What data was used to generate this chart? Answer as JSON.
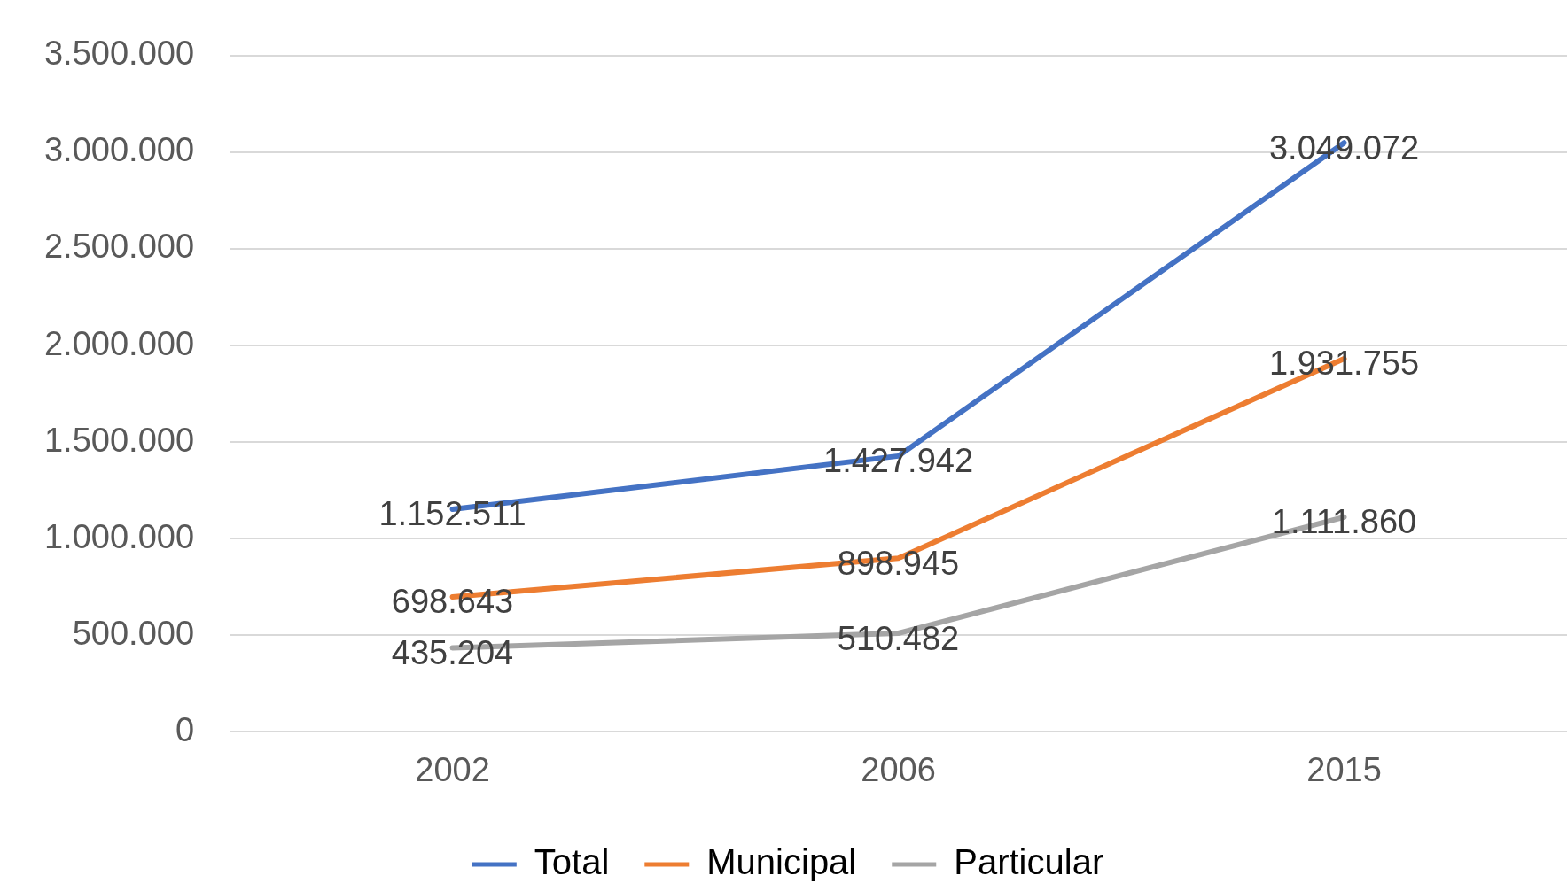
{
  "chart_data": {
    "type": "line",
    "categories": [
      "2002",
      "2006",
      "2015"
    ],
    "series": [
      {
        "name": "Total",
        "color": "#4472c4",
        "values": [
          1152511,
          1427942,
          3049072
        ],
        "value_labels": [
          "1.152.511",
          "1.427.942",
          "3.049.072"
        ]
      },
      {
        "name": "Municipal",
        "color": "#ed7d31",
        "values": [
          698643,
          898945,
          1931755
        ],
        "value_labels": [
          "698.643",
          "898.945",
          "1.931.755"
        ]
      },
      {
        "name": "Particular",
        "color": "#a5a5a5",
        "values": [
          435204,
          510482,
          1111860
        ],
        "value_labels": [
          "435.204",
          "510.482",
          "1.111.860"
        ]
      }
    ],
    "ylim": [
      0,
      3500000
    ],
    "yticks": [
      0,
      {
        "value": 500000,
        "label": "500.000"
      },
      {
        "value": 1000000,
        "label": "1.000.000"
      },
      {
        "value": 1500000,
        "label": "1.500.000"
      },
      {
        "value": 2000000,
        "label": "2.000.000"
      },
      {
        "value": 2500000,
        "label": "2.500.000"
      },
      {
        "value": 3000000,
        "label": "3.000.000"
      },
      {
        "value": 3500000,
        "label": "3.500.000"
      }
    ],
    "grid": "y",
    "legend": "bottom",
    "marker": "none",
    "line_style": "solid"
  }
}
